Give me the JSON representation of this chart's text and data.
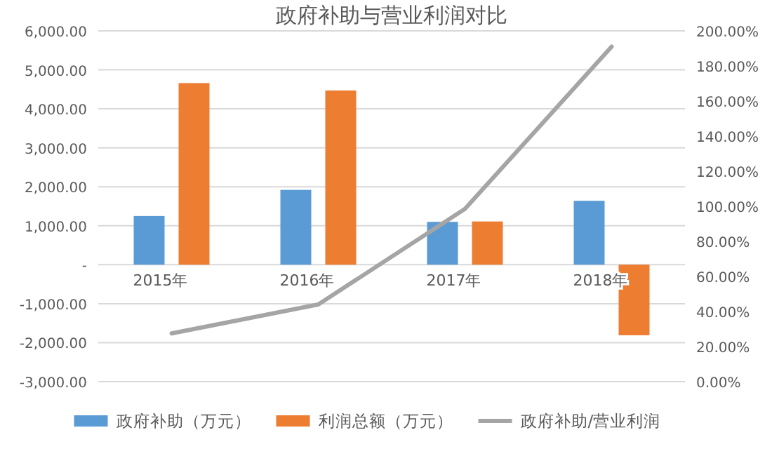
{
  "chart_data": {
    "type": "bar",
    "title": "政府补助与营业利润对比",
    "categories": [
      "2015年",
      "2016年",
      "2017年",
      "2018年"
    ],
    "series": [
      {
        "name": "政府补助（万元）",
        "color": "#5b9bd5",
        "values": [
          1250,
          1920,
          1100,
          1640
        ]
      },
      {
        "name": "利润总额（万元）",
        "color": "#ed7d31",
        "values": [
          4660,
          4470,
          1110,
          -1810
        ]
      },
      {
        "name": "政府补助/营业利润",
        "type": "line",
        "axis": "y2",
        "color": "#a5a5a5",
        "values": [
          27.5,
          44,
          98.5,
          191
        ]
      }
    ],
    "ylim": [
      -3000,
      6000
    ],
    "yticks": [
      {
        "value": -3000,
        "label": "-3,000.00"
      },
      {
        "value": -2000,
        "label": "-2,000.00"
      },
      {
        "value": -1000,
        "label": "-1,000.00"
      },
      {
        "value": 0,
        "label": "-"
      },
      {
        "value": 1000,
        "label": "1,000.00"
      },
      {
        "value": 2000,
        "label": "2,000.00"
      },
      {
        "value": 3000,
        "label": "3,000.00"
      },
      {
        "value": 4000,
        "label": "4,000.00"
      },
      {
        "value": 5000,
        "label": "5,000.00"
      },
      {
        "value": 6000,
        "label": "6,000.00"
      }
    ],
    "y2lim": [
      0,
      200
    ],
    "y2ticks": [
      {
        "value": 0,
        "label": "0.00%"
      },
      {
        "value": 20,
        "label": "20.00%"
      },
      {
        "value": 40,
        "label": "40.00%"
      },
      {
        "value": 60,
        "label": "60.00%"
      },
      {
        "value": 80,
        "label": "80.00%"
      },
      {
        "value": 100,
        "label": "100.00%"
      },
      {
        "value": 120,
        "label": "120.00%"
      },
      {
        "value": 140,
        "label": "140.00%"
      },
      {
        "value": 160,
        "label": "160.00%"
      },
      {
        "value": 180,
        "label": "180.00%"
      },
      {
        "value": 200,
        "label": "200.00%"
      }
    ],
    "grid": "y",
    "legend": "bottom"
  }
}
